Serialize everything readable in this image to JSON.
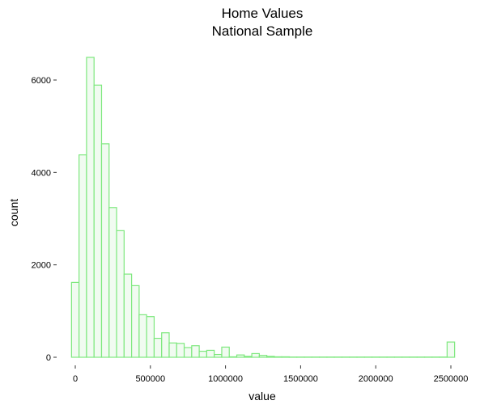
{
  "chart_data": {
    "type": "bar",
    "title": "Home Values",
    "subtitle": "National Sample",
    "xlabel": "value",
    "ylabel": "count",
    "bin_width": 50000,
    "bin_centers": [
      0,
      50000,
      100000,
      150000,
      200000,
      250000,
      300000,
      350000,
      400000,
      450000,
      500000,
      550000,
      600000,
      650000,
      700000,
      750000,
      800000,
      850000,
      900000,
      950000,
      1000000,
      1050000,
      1100000,
      1150000,
      1200000,
      1250000,
      1300000,
      1350000,
      1400000,
      1450000,
      1500000,
      1550000,
      1600000,
      1650000,
      1700000,
      1750000,
      1800000,
      1850000,
      1900000,
      1950000,
      2000000,
      2050000,
      2100000,
      2150000,
      2200000,
      2250000,
      2300000,
      2350000,
      2400000,
      2450000,
      2500000
    ],
    "values": [
      1620,
      4380,
      6490,
      5890,
      4620,
      3240,
      2740,
      1800,
      1550,
      920,
      880,
      410,
      530,
      310,
      300,
      210,
      250,
      130,
      150,
      60,
      220,
      10,
      50,
      20,
      80,
      40,
      20,
      10,
      10,
      5,
      5,
      5,
      5,
      5,
      5,
      5,
      5,
      5,
      5,
      5,
      5,
      5,
      5,
      5,
      5,
      5,
      5,
      5,
      5,
      5,
      330
    ],
    "x_ticks": [
      0,
      500000,
      1000000,
      1500000,
      2000000,
      2500000
    ],
    "x_tick_labels": [
      "0",
      "500000",
      "1000000",
      "1500000",
      "2000000",
      "2500000"
    ],
    "y_ticks": [
      0,
      2000,
      4000,
      6000
    ],
    "y_tick_labels": [
      "0",
      "2000",
      "4000",
      "6000"
    ],
    "xlim": [
      -75000,
      2550000
    ],
    "ylim": [
      0,
      6490
    ],
    "grid": false,
    "bar_fill": "#f1fbf1",
    "bar_outline": "#7ee87e"
  }
}
